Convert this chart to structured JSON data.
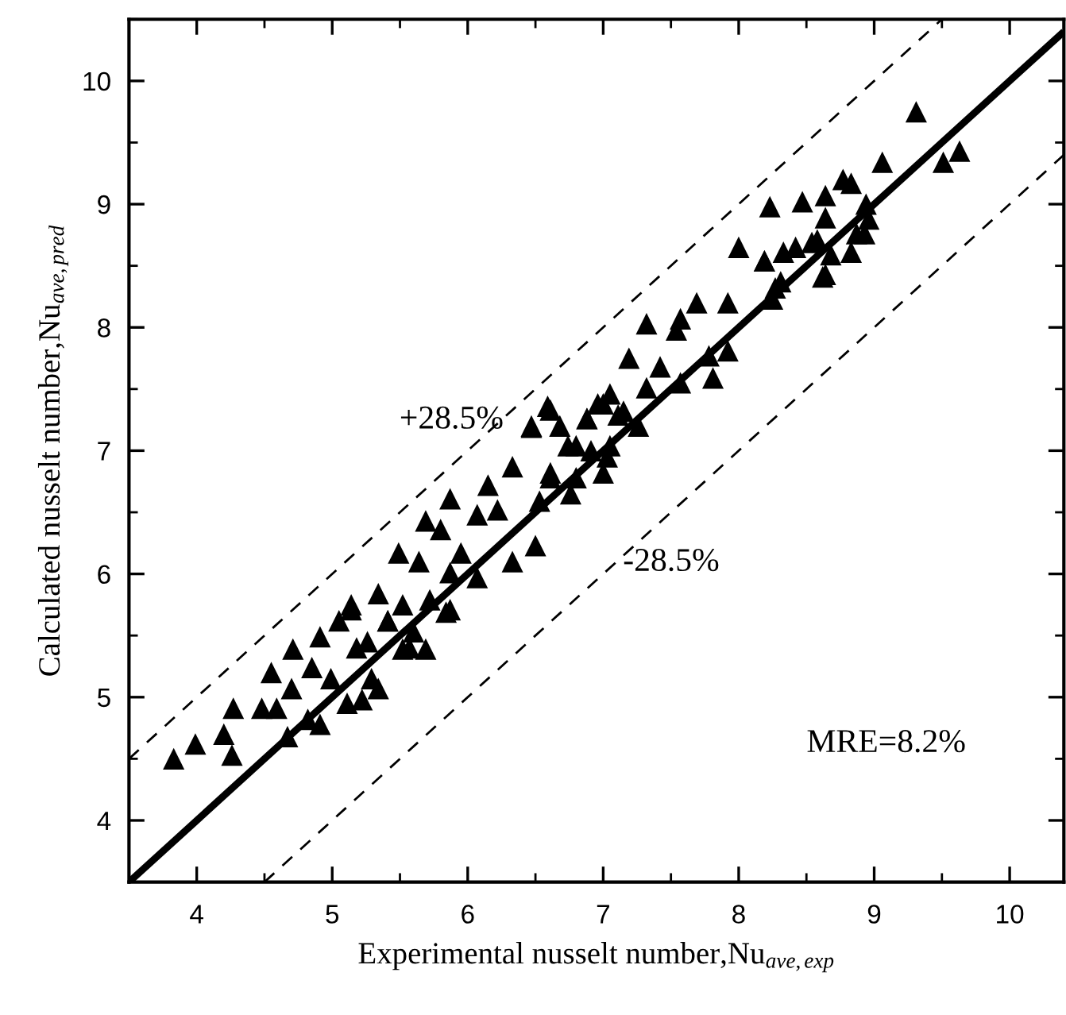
{
  "chart_data": {
    "type": "scatter",
    "xlabel": "Experimental nusselt number,Nu$_{ave,exp}$",
    "ylabel": "Calculated nusselt number,Nu$_{ave,pred}$",
    "xlim": [
      3.5,
      10.4
    ],
    "ylim": [
      3.5,
      10.5
    ],
    "xticks": [
      4,
      5,
      6,
      7,
      8,
      9,
      10
    ],
    "yticks": [
      4,
      5,
      6,
      7,
      8,
      9,
      10
    ],
    "grid": false,
    "annotations": [
      "+28.5%",
      "-28.5%",
      "MRE=8.2%"
    ],
    "series": [
      {
        "color": "#000000",
        "marker": "triangle",
        "x": [
          3.83,
          3.99,
          4.26,
          4.2,
          4.27,
          4.48,
          4.59,
          4.55,
          4.67,
          4.7,
          4.71,
          4.82,
          4.91,
          4.85,
          4.91,
          4.99,
          5.05,
          5.11,
          5.22,
          5.18,
          5.29,
          5.34,
          5.14,
          5.52,
          5.69,
          5.6,
          5.84,
          5.41,
          6.47,
          6.61,
          7.0,
          6.88,
          7.11,
          6.8,
          7.03,
          6.33,
          6.61,
          6.76,
          6.53,
          6.15,
          6.22,
          5.87,
          6.07,
          5.69,
          5.8,
          5.49,
          5.64,
          5.95,
          6.07,
          6.33,
          6.5,
          5.87,
          5.34,
          5.14,
          5.52,
          5.72,
          5.87,
          5.41,
          5.57,
          5.26,
          8.0,
          8.19,
          8.42,
          8.58,
          8.62,
          8.27,
          7.92,
          7.69,
          7.57,
          7.32,
          7.54,
          7.19,
          7.42,
          7.92,
          7.78,
          7.81,
          7.57,
          7.32,
          7.05,
          6.96,
          6.59,
          6.47,
          6.68,
          6.88,
          7.15,
          7.26,
          6.74,
          6.91,
          7.05,
          6.61,
          6.8,
          7.0,
          9.31,
          9.06,
          9.51,
          9.63,
          8.77,
          8.83,
          8.64,
          8.23,
          8.47,
          8.94,
          8.64,
          8.96,
          8.87,
          8.93,
          8.54,
          8.68,
          8.83,
          8.33,
          8.19,
          8.64,
          8.31,
          8.25
        ],
        "values": [
          4.5,
          4.62,
          4.53,
          4.7,
          4.91,
          4.91,
          4.91,
          5.2,
          4.68,
          5.07,
          5.39,
          4.82,
          4.78,
          5.24,
          5.49,
          5.15,
          5.62,
          4.95,
          4.98,
          5.4,
          5.15,
          5.07,
          5.71,
          5.39,
          5.39,
          5.53,
          5.69,
          5.62,
          7.19,
          7.33,
          7.38,
          7.26,
          7.29,
          7.04,
          6.95,
          6.87,
          6.78,
          6.65,
          6.59,
          6.72,
          6.52,
          6.61,
          6.48,
          6.43,
          6.36,
          6.17,
          6.1,
          6.17,
          5.97,
          6.1,
          6.23,
          6.01,
          5.84,
          5.75,
          5.75,
          5.79,
          5.71,
          5.62,
          5.4,
          5.45,
          8.65,
          8.54,
          8.65,
          8.71,
          8.41,
          8.32,
          8.2,
          8.2,
          8.07,
          8.03,
          7.98,
          7.75,
          7.68,
          7.81,
          7.77,
          7.59,
          7.55,
          7.51,
          7.46,
          7.38,
          7.36,
          7.2,
          7.2,
          7.26,
          7.32,
          7.2,
          7.04,
          7.0,
          7.04,
          6.82,
          6.78,
          6.82,
          9.75,
          9.34,
          9.34,
          9.43,
          9.2,
          9.17,
          9.07,
          8.98,
          9.02,
          9.0,
          8.89,
          8.88,
          8.76,
          8.76,
          8.69,
          8.59,
          8.61,
          8.61,
          8.54,
          8.43,
          8.37,
          8.23
        ]
      },
      {
        "type": "line",
        "color": "#000000",
        "line_style": "solid",
        "marker": "none",
        "x": [
          3.5,
          10.4
        ],
        "values": [
          3.5,
          10.4
        ]
      },
      {
        "type": "line",
        "color": "#000000",
        "line_style": "dashed",
        "marker": "none",
        "x": [
          3.5,
          9.5
        ],
        "values": [
          4.5,
          10.5
        ]
      },
      {
        "type": "line",
        "color": "#000000",
        "line_style": "dashed",
        "marker": "none",
        "x": [
          4.5,
          10.4
        ],
        "values": [
          3.5,
          9.4
        ]
      }
    ]
  }
}
